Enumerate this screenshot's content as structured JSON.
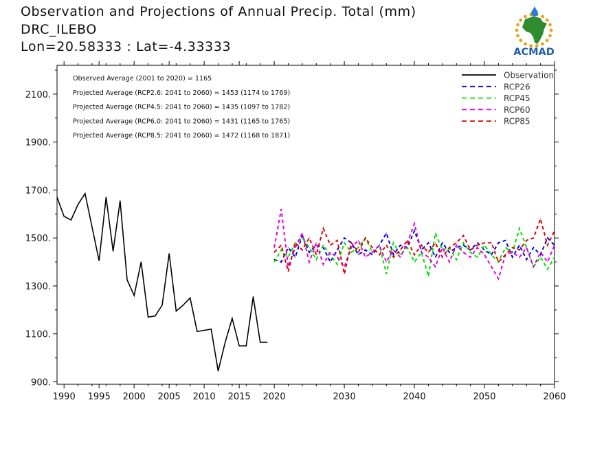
{
  "header": {
    "title": "Observation and Projections of Annual Precip. Total (mm)",
    "station": "DRC_ILEBO",
    "location": "Lon=20.58333 : Lat=-4.33333"
  },
  "logo": {
    "text": "ACMAD",
    "colors": {
      "africa": "#2e8b2e",
      "ring": "#e8a21a",
      "drop": "#2a7fd0",
      "text": "#1f5fae"
    }
  },
  "annotations": [
    "Observed Average (2001 to 2020) = 1165",
    "Projected Average (RCP2.6: 2041 to 2060) = 1453 (1174 to 1769)",
    "Projected Average (RCP4.5: 2041 to 2060) = 1435 (1097 to 1782)",
    "Projected Average (RCP6.0: 2041 to 2060) = 1431 (1165 to 1765)",
    "Projected Average (RCP8.5: 2041 to 2060) = 1472 (1168 to 1871)"
  ],
  "chart_data": {
    "type": "line",
    "xlim": [
      1989,
      2060
    ],
    "ylim": [
      890,
      2220
    ],
    "x_ticks": [
      1990,
      1995,
      2000,
      2005,
      2010,
      2015,
      2020,
      2030,
      2040,
      2050,
      2060
    ],
    "x_minor_ticks": [
      1992,
      1994,
      1996,
      1998,
      2002,
      2004,
      2006,
      2008,
      2012,
      2014,
      2016,
      2018,
      2022,
      2024,
      2026,
      2028,
      2032,
      2034,
      2036,
      2038,
      2042,
      2044,
      2046,
      2048,
      2052,
      2054,
      2056,
      2058
    ],
    "y_ticks": [
      900,
      1100,
      1300,
      1500,
      1700,
      1900,
      2100
    ],
    "y_tick_labels": [
      "900.",
      "1100.",
      "1300.",
      "1500.",
      "1700.",
      "1900.",
      "2100."
    ],
    "y_minor_ticks": [
      1000,
      1200,
      1400,
      1600,
      1800,
      2000,
      2200
    ],
    "x_tick_labels": [
      "1990",
      "1995",
      "2000",
      "2005",
      "2010",
      "2015",
      "2020",
      "2030",
      "2040",
      "2050",
      "2060"
    ],
    "legend_position": "top-right",
    "series": [
      {
        "name": "Observation",
        "color": "#000000",
        "dashed": false,
        "x": [
          1989,
          1990,
          1991,
          1992,
          1993,
          1994,
          1995,
          1996,
          1997,
          1998,
          1999,
          2000,
          2001,
          2002,
          2003,
          2004,
          2005,
          2006,
          2007,
          2008,
          2009,
          2010,
          2011,
          2012,
          2013,
          2014,
          2015,
          2016,
          2017,
          2018,
          2019
        ],
        "values": [
          1670,
          1590,
          1575,
          1640,
          1685,
          1545,
          1405,
          1670,
          1445,
          1655,
          1325,
          1260,
          1400,
          1170,
          1175,
          1220,
          1435,
          1195,
          1220,
          1250,
          1110,
          1115,
          1120,
          945,
          1065,
          1165,
          1050,
          1050,
          1255,
          1065,
          1065
        ]
      },
      {
        "name": "RCP26",
        "color": "#0000e0",
        "dashed": true,
        "x": [
          2020,
          2021,
          2022,
          2023,
          2024,
          2025,
          2026,
          2027,
          2028,
          2029,
          2030,
          2031,
          2032,
          2033,
          2034,
          2035,
          2036,
          2037,
          2038,
          2039,
          2040,
          2041,
          2042,
          2043,
          2044,
          2045,
          2046,
          2047,
          2048,
          2049,
          2050,
          2051,
          2052,
          2053,
          2054,
          2055,
          2056,
          2057,
          2058,
          2059,
          2060
        ],
        "values": [
          1410,
          1400,
          1460,
          1420,
          1510,
          1440,
          1470,
          1460,
          1400,
          1450,
          1500,
          1480,
          1430,
          1450,
          1430,
          1470,
          1520,
          1430,
          1470,
          1460,
          1530,
          1450,
          1480,
          1420,
          1480,
          1440,
          1460,
          1470,
          1450,
          1480,
          1450,
          1430,
          1480,
          1490,
          1420,
          1470,
          1410,
          1460,
          1430,
          1500,
          1470
        ]
      },
      {
        "name": "RCP45",
        "color": "#00e000",
        "dashed": true,
        "x": [
          2020,
          2021,
          2022,
          2023,
          2024,
          2025,
          2026,
          2027,
          2028,
          2029,
          2030,
          2031,
          2032,
          2033,
          2034,
          2035,
          2036,
          2037,
          2038,
          2039,
          2040,
          2041,
          2042,
          2043,
          2044,
          2045,
          2046,
          2047,
          2048,
          2049,
          2050,
          2051,
          2052,
          2053,
          2054,
          2055,
          2056,
          2057,
          2058,
          2059,
          2060
        ],
        "values": [
          1400,
          1450,
          1420,
          1480,
          1500,
          1460,
          1410,
          1470,
          1430,
          1390,
          1480,
          1440,
          1460,
          1500,
          1440,
          1470,
          1350,
          1480,
          1430,
          1460,
          1400,
          1440,
          1340,
          1520,
          1450,
          1460,
          1410,
          1480,
          1440,
          1420,
          1470,
          1430,
          1400,
          1460,
          1440,
          1540,
          1460,
          1380,
          1420,
          1370,
          1420
        ]
      },
      {
        "name": "RCP60",
        "color": "#e000e0",
        "dashed": true,
        "x": [
          2020,
          2021,
          2022,
          2023,
          2024,
          2025,
          2026,
          2027,
          2028,
          2029,
          2030,
          2031,
          2032,
          2033,
          2034,
          2035,
          2036,
          2037,
          2038,
          2039,
          2040,
          2041,
          2042,
          2043,
          2044,
          2045,
          2046,
          2047,
          2048,
          2049,
          2050,
          2051,
          2052,
          2053,
          2054,
          2055,
          2056,
          2057,
          2058,
          2059,
          2060
        ],
        "values": [
          1460,
          1620,
          1380,
          1460,
          1520,
          1400,
          1480,
          1390,
          1440,
          1420,
          1380,
          1460,
          1490,
          1420,
          1440,
          1470,
          1400,
          1450,
          1420,
          1480,
          1560,
          1440,
          1420,
          1380,
          1460,
          1400,
          1470,
          1440,
          1420,
          1460,
          1430,
          1380,
          1330,
          1430,
          1440,
          1420,
          1460,
          1380,
          1440,
          1400,
          1470
        ]
      },
      {
        "name": "RCP85",
        "color": "#e00000",
        "dashed": true,
        "x": [
          2020,
          2021,
          2022,
          2023,
          2024,
          2025,
          2026,
          2027,
          2028,
          2029,
          2030,
          2031,
          2032,
          2033,
          2034,
          2035,
          2036,
          2037,
          2038,
          2039,
          2040,
          2041,
          2042,
          2043,
          2044,
          2045,
          2046,
          2047,
          2048,
          2049,
          2050,
          2051,
          2052,
          2053,
          2054,
          2055,
          2056,
          2057,
          2058,
          2059,
          2060
        ],
        "values": [
          1440,
          1470,
          1360,
          1480,
          1450,
          1500,
          1430,
          1540,
          1470,
          1490,
          1350,
          1480,
          1440,
          1500,
          1460,
          1430,
          1470,
          1420,
          1450,
          1490,
          1430,
          1470,
          1440,
          1480,
          1420,
          1460,
          1480,
          1510,
          1450,
          1470,
          1480,
          1480,
          1400,
          1430,
          1460,
          1450,
          1490,
          1500,
          1580,
          1470,
          1530
        ]
      }
    ]
  }
}
